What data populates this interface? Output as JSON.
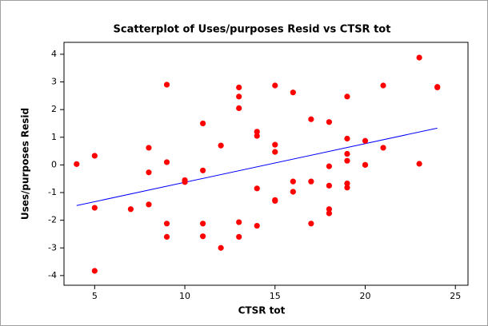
{
  "chart_data": {
    "type": "scatter",
    "title": "Scatterplot of Uses/purposes Resid vs CTSR tot",
    "x_label": "CTSR tot",
    "y_label": "Uses/purposes Resid",
    "xlim": [
      3.3,
      25.7
    ],
    "ylim": [
      -4.35,
      4.43
    ],
    "xticks": [
      5,
      10,
      15,
      20,
      25
    ],
    "yticks": [
      -4,
      -3,
      -2,
      -1,
      0,
      1,
      2,
      3,
      4
    ],
    "series": [
      {
        "color": "#ff0000",
        "x": [
          4,
          5,
          5,
          5,
          7,
          8,
          8,
          8,
          9,
          9,
          9,
          9,
          10,
          10,
          11,
          11,
          11,
          11,
          12,
          12,
          13,
          13,
          13,
          13,
          13,
          14,
          14,
          14,
          14,
          15,
          15,
          15,
          15,
          15,
          16,
          16,
          16,
          17,
          17,
          17,
          18,
          18,
          18,
          18,
          18,
          19,
          19,
          19,
          19,
          19,
          19,
          20,
          20,
          20,
          21,
          21,
          23,
          23,
          24,
          24
        ],
        "values": [
          0.03,
          0.33,
          -1.55,
          -3.83,
          -1.6,
          0.62,
          -0.27,
          -1.43,
          2.9,
          0.1,
          -2.12,
          -2.6,
          -0.55,
          -0.62,
          1.5,
          -0.2,
          -2.12,
          -2.58,
          0.7,
          -3.0,
          2.8,
          2.47,
          2.05,
          -2.07,
          -2.6,
          1.2,
          1.05,
          -0.85,
          -2.2,
          2.87,
          0.73,
          0.47,
          -1.27,
          -1.3,
          2.62,
          -0.6,
          -0.97,
          1.65,
          -0.6,
          -2.12,
          1.55,
          -0.05,
          -0.75,
          -1.6,
          -1.75,
          2.47,
          0.95,
          0.4,
          0.15,
          -0.67,
          -0.82,
          0.87,
          0.0,
          0.0,
          2.87,
          0.62,
          3.88,
          0.04,
          2.82,
          2.8
        ]
      }
    ],
    "fit_line": {
      "color": "#0000ff",
      "x": [
        4,
        24
      ],
      "values": [
        -1.47,
        1.33
      ]
    }
  }
}
